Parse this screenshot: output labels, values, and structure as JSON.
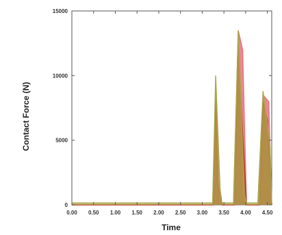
{
  "chart_data": {
    "type": "area",
    "title": "",
    "xlabel": "Time",
    "ylabel": "Contact Force (N)",
    "xlim": [
      0,
      4.6
    ],
    "ylim": [
      0,
      15000
    ],
    "x_ticks": [
      0,
      0.5,
      1.0,
      1.5,
      2.0,
      2.5,
      3.0,
      3.5,
      4.0,
      4.5
    ],
    "x_tick_labels": [
      "0.00",
      "0.50",
      "1.00",
      "1.50",
      "2.00",
      "2.50",
      "3.00",
      "3.50",
      "4.00",
      "4.50"
    ],
    "y_ticks": [
      0,
      5000,
      10000,
      15000
    ],
    "y_tick_labels": [
      "0",
      "5000",
      "10000",
      "15000"
    ],
    "grid": false,
    "series": [
      {
        "color": "#e8737f",
        "x": [
          0,
          3.24,
          3.31,
          3.38,
          3.46,
          3.72,
          3.83,
          3.93,
          4.02,
          4.28,
          4.4,
          4.53,
          4.6
        ],
        "values": [
          0,
          0,
          9000,
          2000,
          0,
          0,
          13500,
          12000,
          0,
          0,
          8500,
          8000,
          0
        ]
      },
      {
        "color": "#c0392b",
        "x": [
          0,
          3.26,
          3.31,
          3.36,
          3.46,
          3.75,
          3.83,
          3.9,
          4.02,
          4.32,
          4.4,
          4.5,
          4.6
        ],
        "values": [
          0,
          0,
          8000,
          1500,
          0,
          0,
          12500,
          7500,
          0,
          0,
          8000,
          6500,
          0
        ]
      },
      {
        "color": "#a8a84a",
        "x": [
          0,
          3.24,
          3.31,
          3.42,
          3.46,
          3.72,
          3.83,
          3.97,
          4.02,
          4.28,
          4.4,
          4.56,
          4.6
        ],
        "values": [
          150,
          150,
          10000,
          500,
          150,
          150,
          13500,
          800,
          150,
          150,
          8800,
          4500,
          150
        ]
      }
    ]
  }
}
